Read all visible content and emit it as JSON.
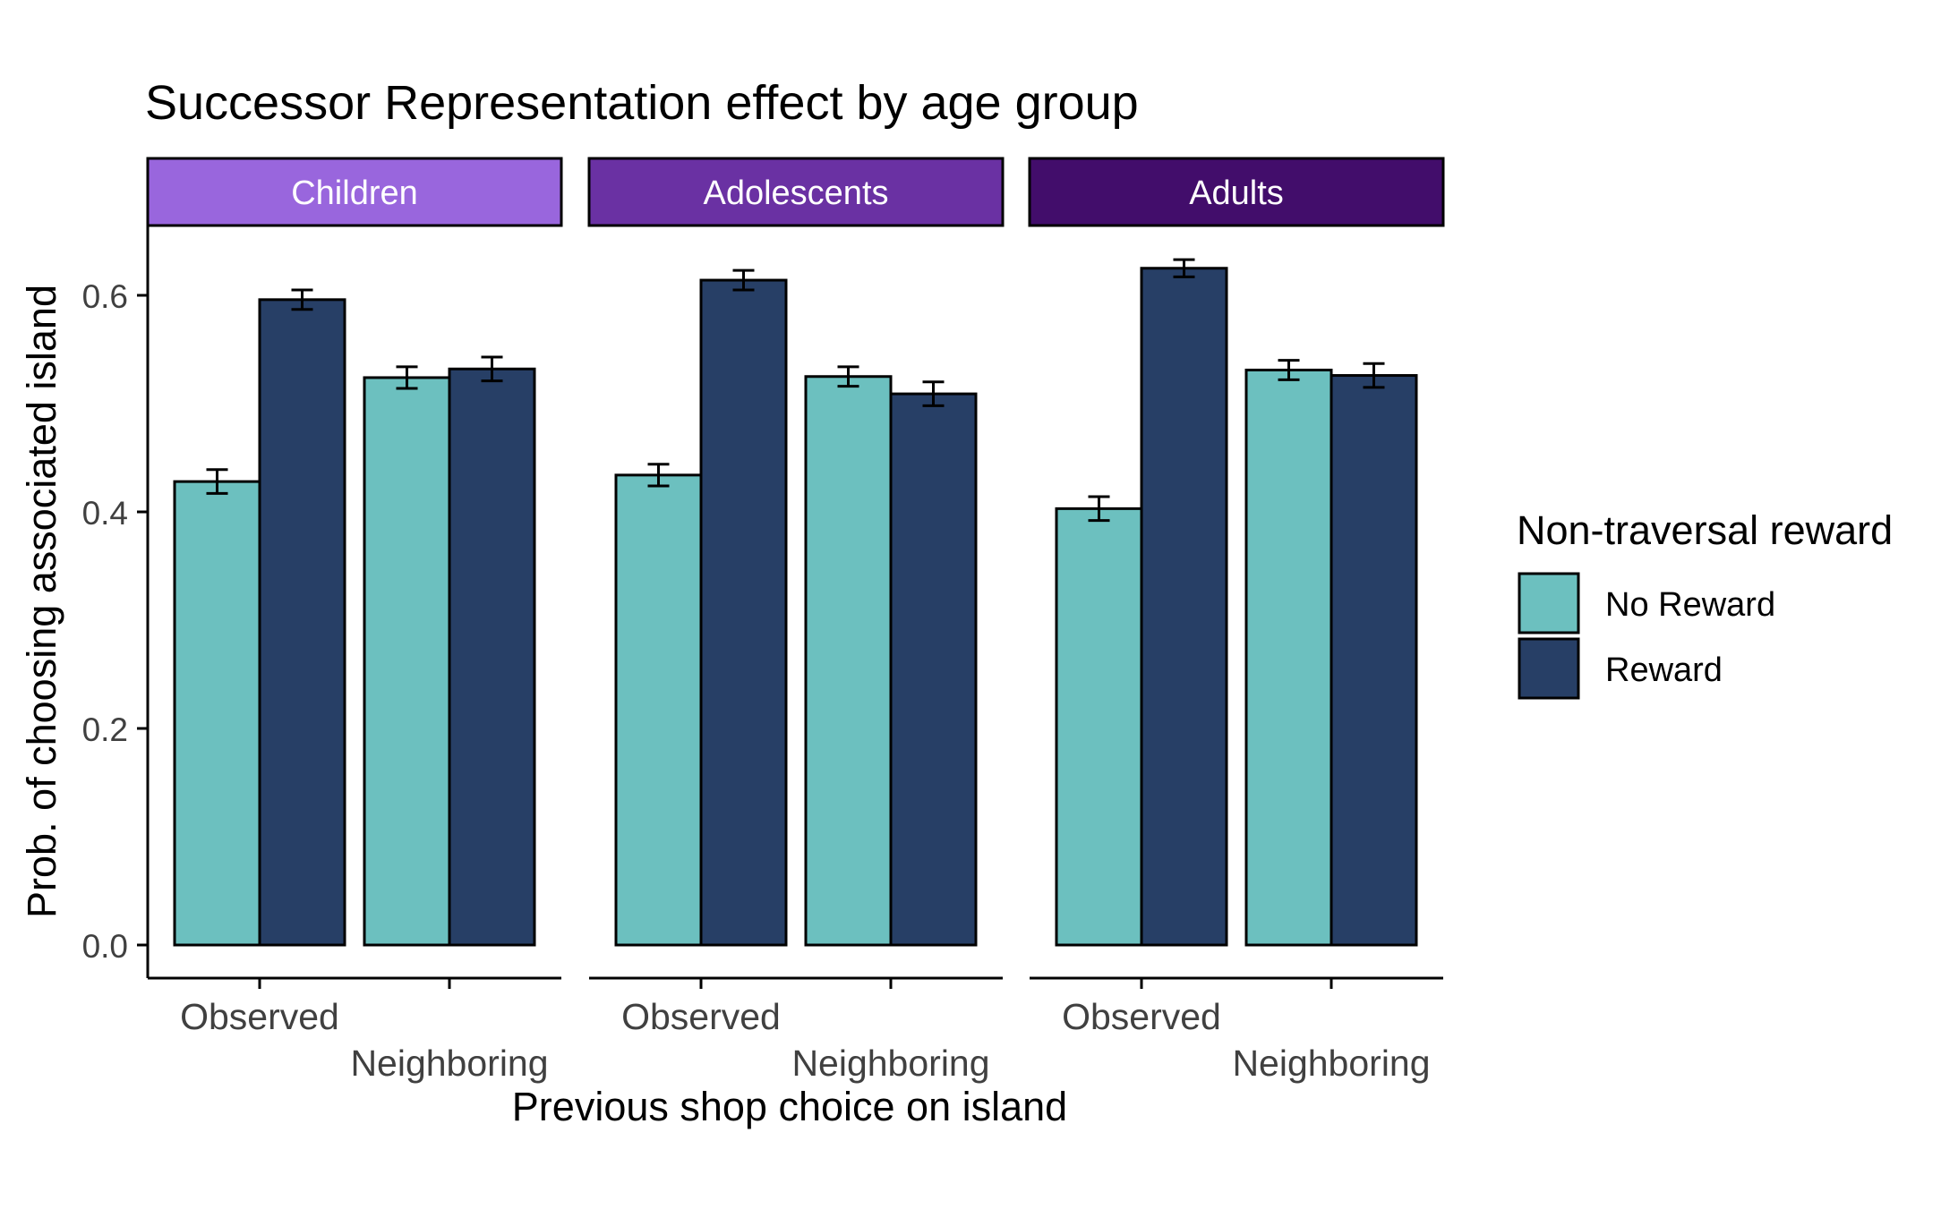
{
  "chart_data": {
    "type": "bar",
    "title": "Successor Representation effect by age group",
    "xlabel": "Previous shop choice on island",
    "ylabel": "Prob. of choosing associated island",
    "ylim": [
      0,
      0.68
    ],
    "yticks": [
      0.0,
      0.2,
      0.4,
      0.6
    ],
    "ytick_labels": [
      "0.0",
      "0.2",
      "0.4",
      "0.6"
    ],
    "categories": [
      "Observed",
      "Neighboring"
    ],
    "legend": {
      "title": "Non-traversal reward",
      "position": "right",
      "items": [
        {
          "label": "No Reward",
          "color": "#6cc0bf"
        },
        {
          "label": "Reward",
          "color": "#273f66"
        }
      ]
    },
    "panels": [
      {
        "label": "Children",
        "strip_color": "#9966dd",
        "series": [
          {
            "name": "No Reward",
            "values": [
              0.428,
              0.524
            ],
            "errors": [
              0.011,
              0.01
            ]
          },
          {
            "name": "Reward",
            "values": [
              0.596,
              0.532
            ],
            "errors": [
              0.009,
              0.011
            ]
          }
        ]
      },
      {
        "label": "Adolescents",
        "strip_color": "#6a31a3",
        "series": [
          {
            "name": "No Reward",
            "values": [
              0.434,
              0.525
            ],
            "errors": [
              0.01,
              0.009
            ]
          },
          {
            "name": "Reward",
            "values": [
              0.614,
              0.509
            ],
            "errors": [
              0.009,
              0.011
            ]
          }
        ]
      },
      {
        "label": "Adults",
        "strip_color": "#420d6b",
        "series": [
          {
            "name": "No Reward",
            "values": [
              0.403,
              0.531
            ],
            "errors": [
              0.011,
              0.009
            ]
          },
          {
            "name": "Reward",
            "values": [
              0.625,
              0.526
            ],
            "errors": [
              0.008,
              0.011
            ]
          }
        ]
      }
    ]
  }
}
